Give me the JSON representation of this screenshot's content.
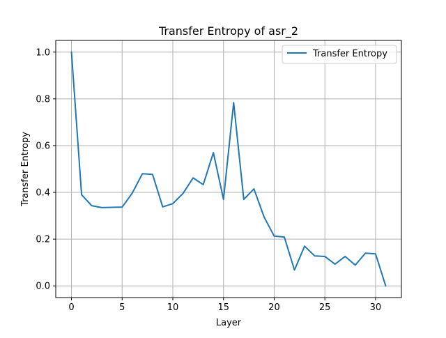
{
  "chart_data": {
    "type": "line",
    "title": "Transfer Entropy of asr_2",
    "xlabel": "Layer",
    "ylabel": "Transfer Entropy",
    "xlim": [
      -1.55,
      32.55
    ],
    "ylim": [
      -0.05,
      1.05
    ],
    "xticks": [
      0,
      5,
      10,
      15,
      20,
      25,
      30
    ],
    "yticks": [
      0.0,
      0.2,
      0.4,
      0.6,
      0.8,
      1.0
    ],
    "ytick_labels": [
      "0.0",
      "0.2",
      "0.4",
      "0.6",
      "0.8",
      "1.0"
    ],
    "grid": true,
    "legend_position": "top-right",
    "series": [
      {
        "name": "Transfer Entropy",
        "color": "#1f77b4",
        "x": [
          0,
          1,
          2,
          3,
          4,
          5,
          6,
          7,
          8,
          9,
          10,
          11,
          12,
          13,
          14,
          15,
          16,
          17,
          18,
          19,
          20,
          21,
          22,
          23,
          24,
          25,
          26,
          27,
          28,
          29,
          30,
          31
        ],
        "values": [
          1.0,
          0.39,
          0.343,
          0.335,
          0.336,
          0.337,
          0.397,
          0.48,
          0.477,
          0.338,
          0.352,
          0.395,
          0.462,
          0.433,
          0.57,
          0.37,
          0.784,
          0.37,
          0.415,
          0.295,
          0.213,
          0.209,
          0.068,
          0.17,
          0.128,
          0.126,
          0.093,
          0.126,
          0.089,
          0.14,
          0.137,
          0.0
        ]
      }
    ]
  }
}
